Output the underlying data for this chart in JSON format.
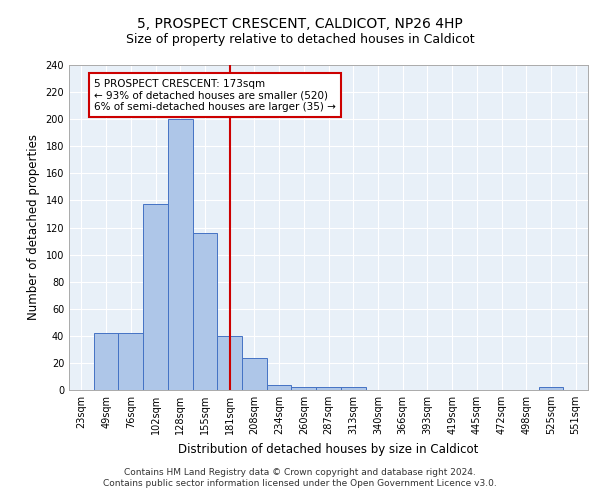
{
  "title": "5, PROSPECT CRESCENT, CALDICOT, NP26 4HP",
  "subtitle": "Size of property relative to detached houses in Caldicot",
  "xlabel": "Distribution of detached houses by size in Caldicot",
  "ylabel": "Number of detached properties",
  "bin_labels": [
    "23sqm",
    "49sqm",
    "76sqm",
    "102sqm",
    "128sqm",
    "155sqm",
    "181sqm",
    "208sqm",
    "234sqm",
    "260sqm",
    "287sqm",
    "313sqm",
    "340sqm",
    "366sqm",
    "393sqm",
    "419sqm",
    "445sqm",
    "472sqm",
    "498sqm",
    "525sqm",
    "551sqm"
  ],
  "bar_heights": [
    0,
    42,
    42,
    137,
    200,
    116,
    40,
    24,
    4,
    2,
    2,
    2,
    0,
    0,
    0,
    0,
    0,
    0,
    0,
    2,
    0
  ],
  "bar_color": "#aec6e8",
  "bar_edge_color": "#4472c4",
  "vline_x_index": 6,
  "vline_color": "#cc0000",
  "annotation_text": "5 PROSPECT CRESCENT: 173sqm\n← 93% of detached houses are smaller (520)\n6% of semi-detached houses are larger (35) →",
  "annotation_box_color": "#ffffff",
  "annotation_box_edge": "#cc0000",
  "ylim": [
    0,
    240
  ],
  "yticks": [
    0,
    20,
    40,
    60,
    80,
    100,
    120,
    140,
    160,
    180,
    200,
    220,
    240
  ],
  "footer_line1": "Contains HM Land Registry data © Crown copyright and database right 2024.",
  "footer_line2": "Contains public sector information licensed under the Open Government Licence v3.0.",
  "background_color": "#e8f0f8",
  "title_fontsize": 10,
  "subtitle_fontsize": 9,
  "ylabel_fontsize": 8.5,
  "xlabel_fontsize": 8.5,
  "tick_fontsize": 7,
  "annotation_fontsize": 7.5,
  "footer_fontsize": 6.5
}
